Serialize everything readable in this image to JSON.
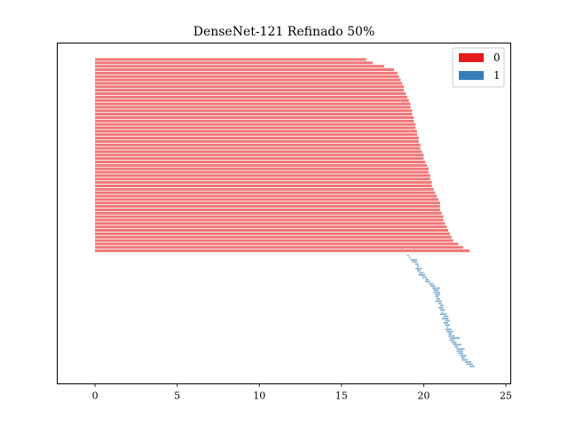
{
  "chart_data": {
    "type": "bar",
    "orientation": "horizontal",
    "title": "DenseNet-121 Refinado 50%",
    "xlabel": "",
    "ylabel": "",
    "xlim": [
      -2.3,
      25.3
    ],
    "xticks": [
      0,
      5,
      10,
      15,
      20,
      25
    ],
    "grid": false,
    "legend": {
      "placement": "top-right",
      "entries": [
        {
          "label": "0",
          "color": "#e41a1c"
        },
        {
          "label": "1",
          "color": "#377eb8"
        }
      ]
    },
    "bar_alpha": 0.6,
    "series": [
      {
        "name": "0",
        "color": "#e41a1c",
        "bar_start": 0,
        "values": [
          16.5,
          16.9,
          17.6,
          18.2,
          18.4,
          18.5,
          18.6,
          18.7,
          18.8,
          18.8,
          18.9,
          19.0,
          19.1,
          19.2,
          19.2,
          19.3,
          19.3,
          19.4,
          19.4,
          19.5,
          19.5,
          19.6,
          19.6,
          19.7,
          19.7,
          19.8,
          19.8,
          19.9,
          20.0,
          20.0,
          20.1,
          20.2,
          20.3,
          20.3,
          20.4,
          20.4,
          20.5,
          20.5,
          20.6,
          20.7,
          20.8,
          20.9,
          21.0,
          21.0,
          21.0,
          21.1,
          21.2,
          21.2,
          21.3,
          21.4,
          21.5,
          21.6,
          21.7,
          21.8,
          22.1,
          22.4,
          22.8
        ]
      },
      {
        "name": "1",
        "color": "#377eb8",
        "segments": [
          [
            19.0,
            19.1
          ],
          [
            19.1,
            19.2
          ],
          [
            19.2,
            19.6
          ],
          [
            19.3,
            19.6
          ],
          [
            19.5,
            19.7
          ],
          [
            19.6,
            19.7
          ],
          [
            19.5,
            19.9
          ],
          [
            19.6,
            19.8
          ],
          [
            19.7,
            20.0
          ],
          [
            19.7,
            20.1
          ],
          [
            19.9,
            20.2
          ],
          [
            20.1,
            20.3
          ],
          [
            20.1,
            20.4
          ],
          [
            20.3,
            20.6
          ],
          [
            20.4,
            20.7
          ],
          [
            20.5,
            21.0
          ],
          [
            20.6,
            20.9
          ],
          [
            20.6,
            21.0
          ],
          [
            20.7,
            21.0
          ],
          [
            20.7,
            20.9
          ],
          [
            20.8,
            21.0
          ],
          [
            20.7,
            21.1
          ],
          [
            20.9,
            21.1
          ],
          [
            21.0,
            21.2
          ],
          [
            20.9,
            21.2
          ],
          [
            21.0,
            21.3
          ],
          [
            21.1,
            21.2
          ],
          [
            21.0,
            21.4
          ],
          [
            21.2,
            21.5
          ],
          [
            21.1,
            21.5
          ],
          [
            21.3,
            21.6
          ],
          [
            21.2,
            21.5
          ],
          [
            21.3,
            21.6
          ],
          [
            21.4,
            21.5
          ],
          [
            21.3,
            21.7
          ],
          [
            21.4,
            21.8
          ],
          [
            21.5,
            21.7
          ],
          [
            21.5,
            21.9
          ],
          [
            21.6,
            22.2
          ],
          [
            21.6,
            21.9
          ],
          [
            21.7,
            22.0
          ],
          [
            21.8,
            22.3
          ],
          [
            21.9,
            22.1
          ],
          [
            22.0,
            22.5
          ],
          [
            22.0,
            22.4
          ],
          [
            22.1,
            22.4
          ],
          [
            22.2,
            22.6
          ],
          [
            22.3,
            22.5
          ],
          [
            22.3,
            22.7
          ],
          [
            22.5,
            22.9
          ],
          [
            22.6,
            23.0
          ],
          [
            22.8,
            23.1
          ]
        ]
      }
    ]
  }
}
